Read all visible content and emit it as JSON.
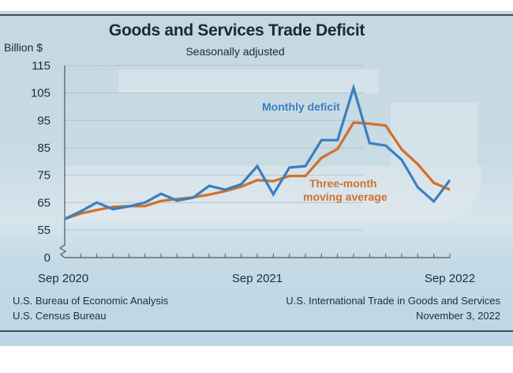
{
  "header": {
    "title": "Goods and Services Trade Deficit",
    "subtitle": "Seasonally adjusted",
    "y_unit": "Billion $"
  },
  "footer": {
    "left_line1": "U.S. Bureau of Economic Analysis",
    "left_line2": "U.S. Census Bureau",
    "right_line1": "U.S. International Trade in Goods and Services",
    "right_line2": "November 3, 2022"
  },
  "colors": {
    "monthly": "#3a7fc1",
    "average": "#d0702c",
    "axis": "#4a5a63",
    "grid": "#9fb2bd"
  },
  "chart_data": {
    "type": "line",
    "title": "Goods and Services Trade Deficit",
    "subtitle": "Seasonally adjusted",
    "xlabel": "",
    "ylabel": "Billion $",
    "ylim": [
      55,
      115
    ],
    "y_break": true,
    "yticks": [
      0,
      55,
      65,
      75,
      85,
      95,
      105,
      115
    ],
    "xtick_labels": [
      {
        "index": 0,
        "label": "Sep 2020"
      },
      {
        "index": 12,
        "label": "Sep 2021"
      },
      {
        "index": 24,
        "label": "Sep 2022"
      }
    ],
    "grid": true,
    "x": [
      "Sep 2020",
      "Oct 2020",
      "Nov 2020",
      "Dec 2020",
      "Jan 2021",
      "Feb 2021",
      "Mar 2021",
      "Apr 2021",
      "May 2021",
      "Jun 2021",
      "Jul 2021",
      "Aug 2021",
      "Sep 2021",
      "Oct 2021",
      "Nov 2021",
      "Dec 2021",
      "Jan 2022",
      "Feb 2022",
      "Mar 2022",
      "Apr 2022",
      "May 2022",
      "Jun 2022",
      "Jul 2022",
      "Aug 2022",
      "Sep 2022"
    ],
    "series": [
      {
        "name": "Monthly deficit",
        "values": [
          59.0,
          61.8,
          65.0,
          62.6,
          63.6,
          65.0,
          68.2,
          65.7,
          66.8,
          71.1,
          69.7,
          71.7,
          78.3,
          68.0,
          77.8,
          78.3,
          87.8,
          87.8,
          106.9,
          86.7,
          85.8,
          80.6,
          70.6,
          65.4,
          73.2
        ]
      },
      {
        "name": "Three-month moving average",
        "values": [
          59.0,
          61.0,
          62.3,
          63.4,
          63.7,
          63.7,
          65.6,
          66.3,
          66.9,
          67.9,
          69.2,
          70.8,
          73.2,
          72.8,
          74.7,
          74.7,
          81.3,
          84.6,
          94.2,
          93.8,
          93.1,
          84.4,
          79.0,
          72.2,
          69.7
        ]
      }
    ],
    "annotations": [
      {
        "text": "Monthly deficit",
        "series": "Monthly deficit"
      },
      {
        "text": "Three-month",
        "series": "Three-month moving average"
      },
      {
        "text": "moving average",
        "series": "Three-month moving average"
      }
    ]
  }
}
